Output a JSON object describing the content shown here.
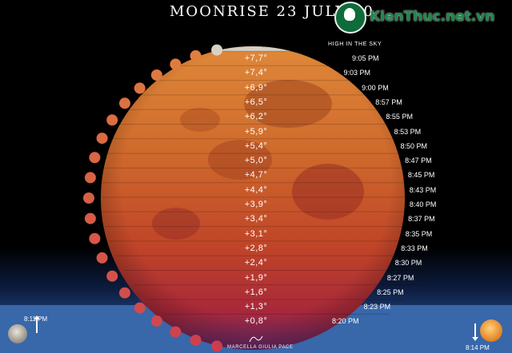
{
  "title": "MOONRISE 23 JULY 20",
  "logo_text": "KienThuc.net.vn",
  "high_label": "HIGH IN THE SKY",
  "start_time": "8:11 PM",
  "end_time": "8:14 PM",
  "credit": "MARCELLA GIULIA PACE",
  "colors": {
    "sky_top": "#000000",
    "horizon_blue": "#2e5fa0",
    "moon_orange": "#d2691e",
    "moon_red": "#b22222"
  },
  "observations": [
    {
      "altitude": "+7,7°",
      "time": "9:05 PM"
    },
    {
      "altitude": "+7,4°",
      "time": "9:03 PM"
    },
    {
      "altitude": "+6,9°",
      "time": "9:00 PM"
    },
    {
      "altitude": "+6,5°",
      "time": "8:57 PM"
    },
    {
      "altitude": "+6,2°",
      "time": "8:55 PM"
    },
    {
      "altitude": "+5,9°",
      "time": "8:53 PM"
    },
    {
      "altitude": "+5,4°",
      "time": "8:50 PM"
    },
    {
      "altitude": "+5,0°",
      "time": "8:47 PM"
    },
    {
      "altitude": "+4,7°",
      "time": "8:45 PM"
    },
    {
      "altitude": "+4,4°",
      "time": "8:43 PM"
    },
    {
      "altitude": "+3,9°",
      "time": "8:40 PM"
    },
    {
      "altitude": "+3,4°",
      "time": "8:37 PM"
    },
    {
      "altitude": "+3,1°",
      "time": "8:35 PM"
    },
    {
      "altitude": "+2,8°",
      "time": "8:33 PM"
    },
    {
      "altitude": "+2,4°",
      "time": "8:30 PM"
    },
    {
      "altitude": "+1,9°",
      "time": "8:27 PM"
    },
    {
      "altitude": "+1,6°",
      "time": "8:25 PM"
    },
    {
      "altitude": "+1,3°",
      "time": "8:23 PM"
    },
    {
      "altitude": "+0,8°",
      "time": "8:20 PM"
    }
  ]
}
